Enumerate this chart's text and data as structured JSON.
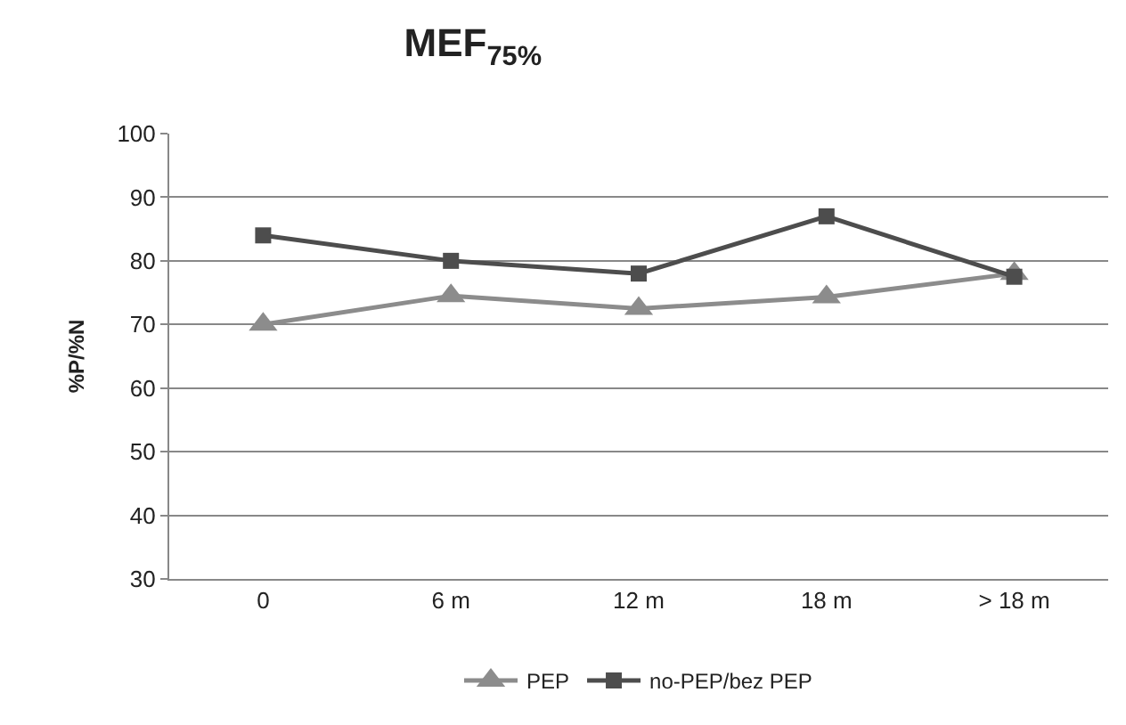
{
  "chart_data": {
    "type": "line",
    "title": "MEF$_{75%}$",
    "ylabel": "%P/%N",
    "categories": [
      "0",
      "6 m",
      "12 m",
      "18 m",
      "> 18 m"
    ],
    "series": [
      {
        "name": "PEP",
        "color": "#8c8c8c",
        "marker": "triangle",
        "values": [
          70,
          74.5,
          72.5,
          74.3,
          78
        ]
      },
      {
        "name": "no-PEP/bez PEP",
        "color": "#4d4d4d",
        "marker": "square",
        "values": [
          84,
          80,
          78,
          87,
          77.5
        ]
      }
    ],
    "ylim": [
      30,
      100
    ],
    "yticks": [
      30,
      40,
      50,
      60,
      70,
      80,
      90,
      100
    ],
    "grid": "y",
    "legend": "bottom",
    "line_style": "solid"
  }
}
